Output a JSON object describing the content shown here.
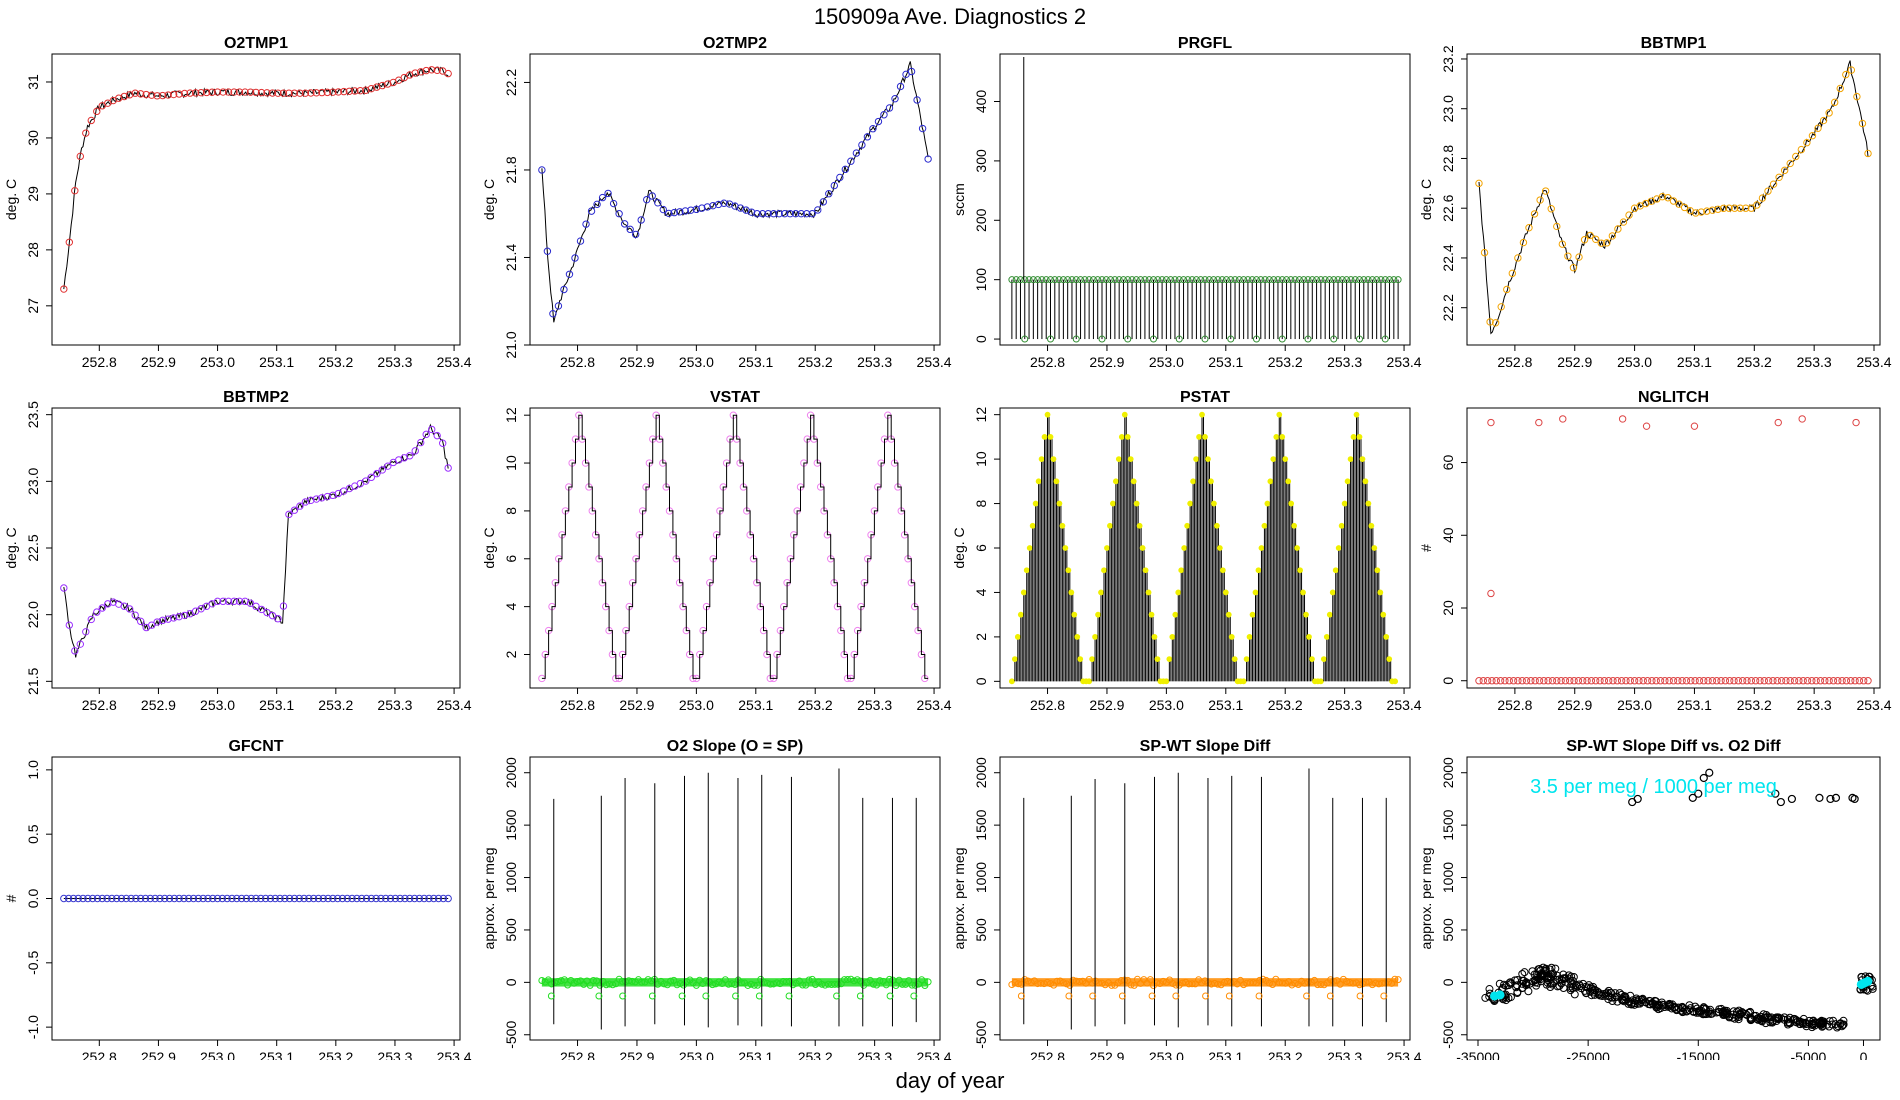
{
  "page_title": "150909a   Ave. Diagnostics 2",
  "x_axis_label": "day of year",
  "annotation": "3.5 per meg / 1000 per meg",
  "colors": {
    "o2tmp1": "#e03030",
    "o2tmp2": "#2a2acf",
    "prgfl": "#2e8b2e",
    "bbtmp1": "#f2a300",
    "bbtmp2": "#9b30ff",
    "vstat": "#ee82ee",
    "pstat": "#f0f000",
    "nglitch": "#dd4444",
    "gfcnt": "#3a3acf",
    "o2slope": "#22dd22",
    "spwt": "#ff8c00",
    "scatter": "#000000",
    "annotation": "#00e5ee"
  },
  "chart_data": [
    {
      "id": "o2tmp1",
      "type": "line",
      "title": "O2TMP1",
      "ylabel": "deg. C",
      "x_ticks": [
        "252.8",
        "252.9",
        "253.0",
        "253.1",
        "253.2",
        "253.3",
        "253.4"
      ],
      "y_ticks": [
        "27",
        "28",
        "29",
        "30",
        "31"
      ],
      "xlim": [
        252.72,
        253.41
      ],
      "ylim": [
        26.3,
        31.5
      ],
      "x": [
        252.74,
        252.75,
        252.76,
        252.77,
        252.78,
        252.8,
        252.83,
        252.86,
        252.9,
        252.95,
        253.0,
        253.05,
        253.1,
        253.15,
        253.2,
        253.25,
        253.3,
        253.33,
        253.36,
        253.38,
        253.39
      ],
      "y": [
        27.3,
        28.2,
        29.2,
        29.8,
        30.2,
        30.55,
        30.7,
        30.8,
        30.75,
        30.8,
        30.82,
        30.82,
        30.8,
        30.8,
        30.82,
        30.85,
        31.0,
        31.15,
        31.22,
        31.2,
        31.15
      ]
    },
    {
      "id": "o2tmp2",
      "type": "line",
      "title": "O2TMP2",
      "ylabel": "deg. C",
      "x_ticks": [
        "252.8",
        "252.9",
        "253.0",
        "253.1",
        "253.2",
        "253.3",
        "253.4"
      ],
      "y_ticks": [
        "21.0",
        "21.4",
        "21.8",
        "22.2"
      ],
      "xlim": [
        252.72,
        253.41
      ],
      "ylim": [
        21.0,
        22.33
      ],
      "x": [
        252.74,
        252.75,
        252.76,
        252.77,
        252.79,
        252.82,
        252.85,
        252.88,
        252.9,
        252.92,
        252.95,
        253.0,
        253.05,
        253.1,
        253.15,
        253.2,
        253.25,
        253.3,
        253.33,
        253.36,
        253.38,
        253.39
      ],
      "y": [
        21.8,
        21.4,
        21.1,
        21.2,
        21.35,
        21.6,
        21.7,
        21.55,
        21.5,
        21.7,
        21.6,
        21.62,
        21.65,
        21.6,
        21.6,
        21.6,
        21.8,
        22.0,
        22.1,
        22.28,
        22.0,
        21.85
      ]
    },
    {
      "id": "prgfl",
      "type": "pulse",
      "title": "PRGFL",
      "ylabel": "sccm",
      "x_ticks": [
        "252.8",
        "252.9",
        "253.0",
        "253.1",
        "253.2",
        "253.3",
        "253.4"
      ],
      "y_ticks": [
        "0",
        "100",
        "200",
        "300",
        "400"
      ],
      "xlim": [
        252.72,
        253.41
      ],
      "ylim": [
        -10,
        480
      ],
      "base": 100,
      "low": 0,
      "spike_x": 252.76,
      "spike_y": 475,
      "start": 252.74,
      "end": 253.39,
      "n": 90
    },
    {
      "id": "bbtmp1",
      "type": "line",
      "title": "BBTMP1",
      "ylabel": "deg. C",
      "x_ticks": [
        "252.8",
        "252.9",
        "253.0",
        "253.1",
        "253.2",
        "253.3",
        "253.4"
      ],
      "y_ticks": [
        "22.2",
        "22.4",
        "22.6",
        "22.8",
        "23.0",
        "23.2"
      ],
      "xlim": [
        252.72,
        253.41
      ],
      "ylim": [
        22.05,
        23.22
      ],
      "x": [
        252.74,
        252.75,
        252.76,
        252.77,
        252.79,
        252.82,
        252.85,
        252.88,
        252.9,
        252.92,
        252.95,
        253.0,
        253.05,
        253.1,
        253.15,
        253.2,
        253.25,
        253.3,
        253.33,
        253.36,
        253.38,
        253.39
      ],
      "y": [
        22.7,
        22.4,
        22.1,
        22.15,
        22.3,
        22.5,
        22.68,
        22.45,
        22.35,
        22.5,
        22.45,
        22.6,
        22.65,
        22.58,
        22.6,
        22.6,
        22.75,
        22.9,
        23.0,
        23.18,
        22.95,
        22.82
      ]
    },
    {
      "id": "bbtmp2",
      "type": "line",
      "title": "BBTMP2",
      "ylabel": "deg. C",
      "x_ticks": [
        "252.8",
        "252.9",
        "253.0",
        "253.1",
        "253.2",
        "253.3",
        "253.4"
      ],
      "y_ticks": [
        "21.5",
        "22.0",
        "22.5",
        "23.0",
        "23.5"
      ],
      "xlim": [
        252.72,
        253.41
      ],
      "ylim": [
        21.45,
        23.55
      ],
      "x": [
        252.74,
        252.75,
        252.76,
        252.77,
        252.79,
        252.82,
        252.85,
        252.88,
        252.9,
        252.95,
        253.0,
        253.05,
        253.11,
        253.12,
        253.15,
        253.2,
        253.25,
        253.3,
        253.33,
        253.36,
        253.38,
        253.39
      ],
      "y": [
        22.2,
        21.9,
        21.7,
        21.8,
        22.0,
        22.1,
        22.05,
        21.9,
        21.95,
        22.0,
        22.1,
        22.1,
        21.95,
        22.75,
        22.85,
        22.9,
        23.0,
        23.15,
        23.2,
        23.4,
        23.3,
        23.1
      ]
    },
    {
      "id": "vstat",
      "type": "step",
      "title": "VSTAT",
      "ylabel": "deg. C",
      "x_ticks": [
        "252.8",
        "252.9",
        "253.0",
        "253.1",
        "253.2",
        "253.3",
        "253.4"
      ],
      "y_ticks": [
        "2",
        "4",
        "6",
        "8",
        "10",
        "12"
      ],
      "xlim": [
        252.72,
        253.41
      ],
      "ylim": [
        0.6,
        12.3
      ],
      "start": 252.74,
      "end": 253.39,
      "cycles": 5,
      "min": 1,
      "max": 12
    },
    {
      "id": "pstat",
      "type": "sawtooth",
      "title": "PSTAT",
      "ylabel": "deg. C",
      "x_ticks": [
        "252.8",
        "252.9",
        "253.0",
        "253.1",
        "253.2",
        "253.3",
        "253.4"
      ],
      "y_ticks": [
        "0",
        "2",
        "4",
        "6",
        "8",
        "10",
        "12"
      ],
      "xlim": [
        252.72,
        253.41
      ],
      "ylim": [
        -0.3,
        12.3
      ],
      "start": 252.74,
      "end": 253.39,
      "cycles": 5,
      "min": 0,
      "max": 12
    },
    {
      "id": "nglitch",
      "type": "scatter",
      "title": "NGLITCH",
      "ylabel": "#",
      "x_ticks": [
        "252.8",
        "252.9",
        "253.0",
        "253.1",
        "253.2",
        "253.3",
        "253.4"
      ],
      "y_ticks": [
        "0",
        "20",
        "40",
        "60"
      ],
      "xlim": [
        252.72,
        253.41
      ],
      "ylim": [
        -2,
        75
      ],
      "points": [
        [
          252.76,
          71
        ],
        [
          252.76,
          24
        ],
        [
          252.84,
          71
        ],
        [
          252.88,
          72
        ],
        [
          252.98,
          72
        ],
        [
          253.02,
          70
        ],
        [
          253.1,
          70
        ],
        [
          253.24,
          71
        ],
        [
          253.28,
          72
        ],
        [
          253.37,
          71
        ]
      ],
      "zero_start": 252.74,
      "zero_end": 253.39
    },
    {
      "id": "gfcnt",
      "type": "flat",
      "title": "GFCNT",
      "ylabel": "#",
      "x_ticks": [
        "252.8",
        "252.9",
        "253.0",
        "253.1",
        "253.2",
        "253.3",
        "253.4"
      ],
      "y_ticks": [
        "-1.0",
        "-0.5",
        "0.0",
        "0.5",
        "1.0"
      ],
      "xlim": [
        252.72,
        253.41
      ],
      "ylim": [
        -1.1,
        1.1
      ],
      "value": 0,
      "start": 252.74,
      "end": 253.39
    },
    {
      "id": "o2slope",
      "type": "spikes",
      "title": "O2 Slope (O = SP)",
      "ylabel": "approx. per meg",
      "x_ticks": [
        "252.8",
        "252.9",
        "253.0",
        "253.1",
        "253.2",
        "253.3",
        "253.4"
      ],
      "y_ticks": [
        "-500",
        "0",
        "500",
        "1000",
        "1500",
        "2000"
      ],
      "xlim": [
        252.72,
        253.41
      ],
      "ylim": [
        -550,
        2150
      ],
      "spikes": [
        [
          252.76,
          1750,
          -400
        ],
        [
          252.84,
          1780,
          -450
        ],
        [
          252.88,
          1950,
          -420
        ],
        [
          252.93,
          1900,
          -400
        ],
        [
          252.98,
          1970,
          -410
        ],
        [
          253.02,
          2000,
          -430
        ],
        [
          253.07,
          1950,
          -410
        ],
        [
          253.11,
          1980,
          -420
        ],
        [
          253.16,
          1960,
          -420
        ],
        [
          253.24,
          2040,
          -420
        ],
        [
          253.28,
          1760,
          -420
        ],
        [
          253.33,
          1760,
          -420
        ],
        [
          253.37,
          1760,
          -380
        ]
      ],
      "start": 252.74,
      "end": 253.39
    },
    {
      "id": "spwt",
      "type": "spikes",
      "title": "SP-WT Slope Diff",
      "ylabel": "approx. per meg",
      "x_ticks": [
        "252.8",
        "252.9",
        "253.0",
        "253.1",
        "253.2",
        "253.3",
        "253.4"
      ],
      "y_ticks": [
        "-500",
        "0",
        "500",
        "1000",
        "1500",
        "2000"
      ],
      "xlim": [
        252.72,
        253.41
      ],
      "ylim": [
        -550,
        2150
      ],
      "spikes": [
        [
          252.76,
          1760,
          -400
        ],
        [
          252.84,
          1780,
          -450
        ],
        [
          252.88,
          1940,
          -420
        ],
        [
          252.93,
          1900,
          -400
        ],
        [
          252.98,
          1960,
          -410
        ],
        [
          253.02,
          2000,
          -430
        ],
        [
          253.07,
          1950,
          -410
        ],
        [
          253.11,
          1970,
          -420
        ],
        [
          253.16,
          1960,
          -420
        ],
        [
          253.24,
          2040,
          -420
        ],
        [
          253.28,
          1760,
          -420
        ],
        [
          253.33,
          1760,
          -420
        ],
        [
          253.37,
          1760,
          -380
        ]
      ],
      "start": 252.74,
      "end": 253.39
    },
    {
      "id": "scatter",
      "type": "scatter2",
      "title": "SP-WT Slope Diff vs. O2 Diff",
      "ylabel": "approx. per meg",
      "x_ticks": [
        "-35000",
        "-25000",
        "-15000",
        "-5000",
        "0"
      ],
      "y_ticks": [
        "-500",
        "0",
        "500",
        "1000",
        "1500",
        "2000"
      ],
      "xlim": [
        -36000,
        1500
      ],
      "ylim": [
        -550,
        2150
      ],
      "high_points": [
        [
          -21000,
          1720
        ],
        [
          -20500,
          1750
        ],
        [
          -15500,
          1760
        ],
        [
          -15000,
          1800
        ],
        [
          -14500,
          1950
        ],
        [
          -14000,
          2000
        ],
        [
          -8000,
          1800
        ],
        [
          -7500,
          1720
        ],
        [
          -6500,
          1750
        ],
        [
          -4000,
          1760
        ],
        [
          -3000,
          1750
        ],
        [
          -2500,
          1760
        ],
        [
          -1000,
          1760
        ],
        [
          -800,
          1750
        ]
      ],
      "band": [
        [
          -34000,
          -150
        ],
        [
          -32000,
          -60
        ],
        [
          -30000,
          60
        ],
        [
          -29000,
          80
        ],
        [
          -28000,
          30
        ],
        [
          -26000,
          -40
        ],
        [
          -24000,
          -100
        ],
        [
          -22000,
          -150
        ],
        [
          -20000,
          -190
        ],
        [
          -18000,
          -220
        ],
        [
          -16000,
          -250
        ],
        [
          -14000,
          -280
        ],
        [
          -12000,
          -300
        ],
        [
          -10000,
          -330
        ],
        [
          -8000,
          -360
        ],
        [
          -6000,
          -380
        ],
        [
          -4000,
          -400
        ],
        [
          -2000,
          -400
        ]
      ],
      "cyan_points": [
        [
          -33500,
          -130
        ],
        [
          -33000,
          -120
        ],
        [
          -200,
          -20
        ],
        [
          0,
          -10
        ],
        [
          200,
          0
        ],
        [
          400,
          10
        ]
      ]
    }
  ]
}
